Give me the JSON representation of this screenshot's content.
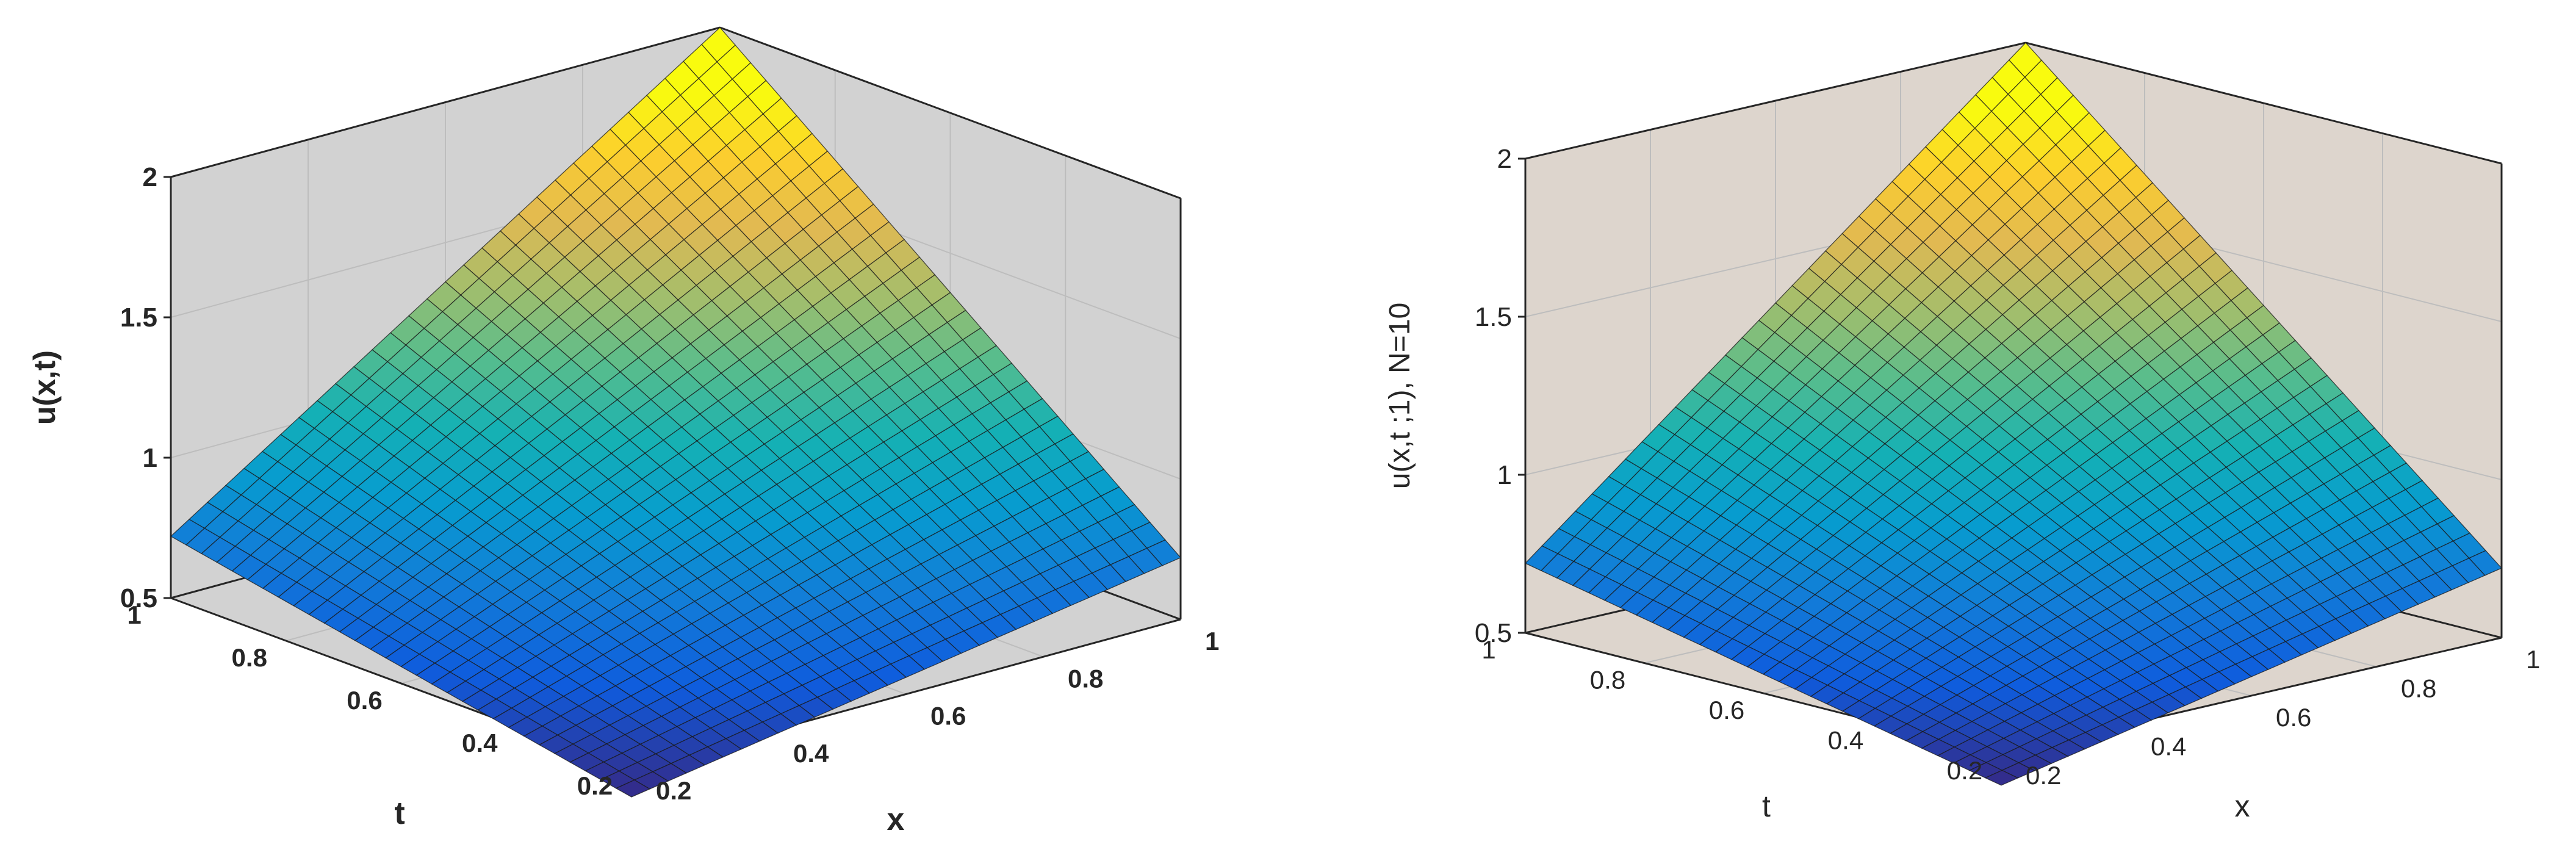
{
  "figure": {
    "background": "#ffffff"
  },
  "chart_data": [
    {
      "type": "surface",
      "xlabel": "x",
      "ylabel": "t",
      "zlabel": "u(x,t)",
      "label_weight": "bold",
      "xlim": [
        0.2,
        1
      ],
      "ylim": [
        0.2,
        1
      ],
      "zlim": [
        0.5,
        2
      ],
      "x_ticks": [
        "0.2",
        "0.4",
        "0.6",
        "0.8",
        "1"
      ],
      "y_ticks": [
        "0.2",
        "0.4",
        "0.6",
        "0.8",
        "1"
      ],
      "z_ticks": [
        "0.5",
        "1",
        "1.5",
        "2"
      ],
      "pane_color": "#d2d2d2",
      "grid": true,
      "colormap": "parula",
      "surface": {
        "x": [
          0.2,
          1
        ],
        "t": [
          0.2,
          1
        ],
        "resolution": 30,
        "corner_values": {
          "x0.2_t0.2": 0.4,
          "x1_t0.2": 0.72,
          "x0.2_t1": 0.72,
          "x1_t1": 2.0
        }
      }
    },
    {
      "type": "surface",
      "xlabel": "x",
      "ylabel": "t",
      "zlabel": "u(x,t ;1), N=10",
      "label_weight": "normal",
      "xlim": [
        0.2,
        1
      ],
      "ylim": [
        0.2,
        1
      ],
      "zlim": [
        0.5,
        2
      ],
      "x_ticks": [
        "0.2",
        "0.4",
        "0.6",
        "0.8",
        "1"
      ],
      "y_ticks": [
        "0.2",
        "0.4",
        "0.6",
        "0.8",
        "1"
      ],
      "z_ticks": [
        "0.5",
        "1",
        "1.5",
        "2"
      ],
      "pane_color": "#ddd5cd",
      "grid": true,
      "colormap": "parula",
      "surface": {
        "x": [
          0.2,
          1
        ],
        "t": [
          0.2,
          1
        ],
        "resolution": 30,
        "corner_values": {
          "x0.2_t0.2": 0.4,
          "x1_t0.2": 0.72,
          "x0.2_t1": 0.72,
          "x1_t1": 2.0
        }
      }
    }
  ]
}
